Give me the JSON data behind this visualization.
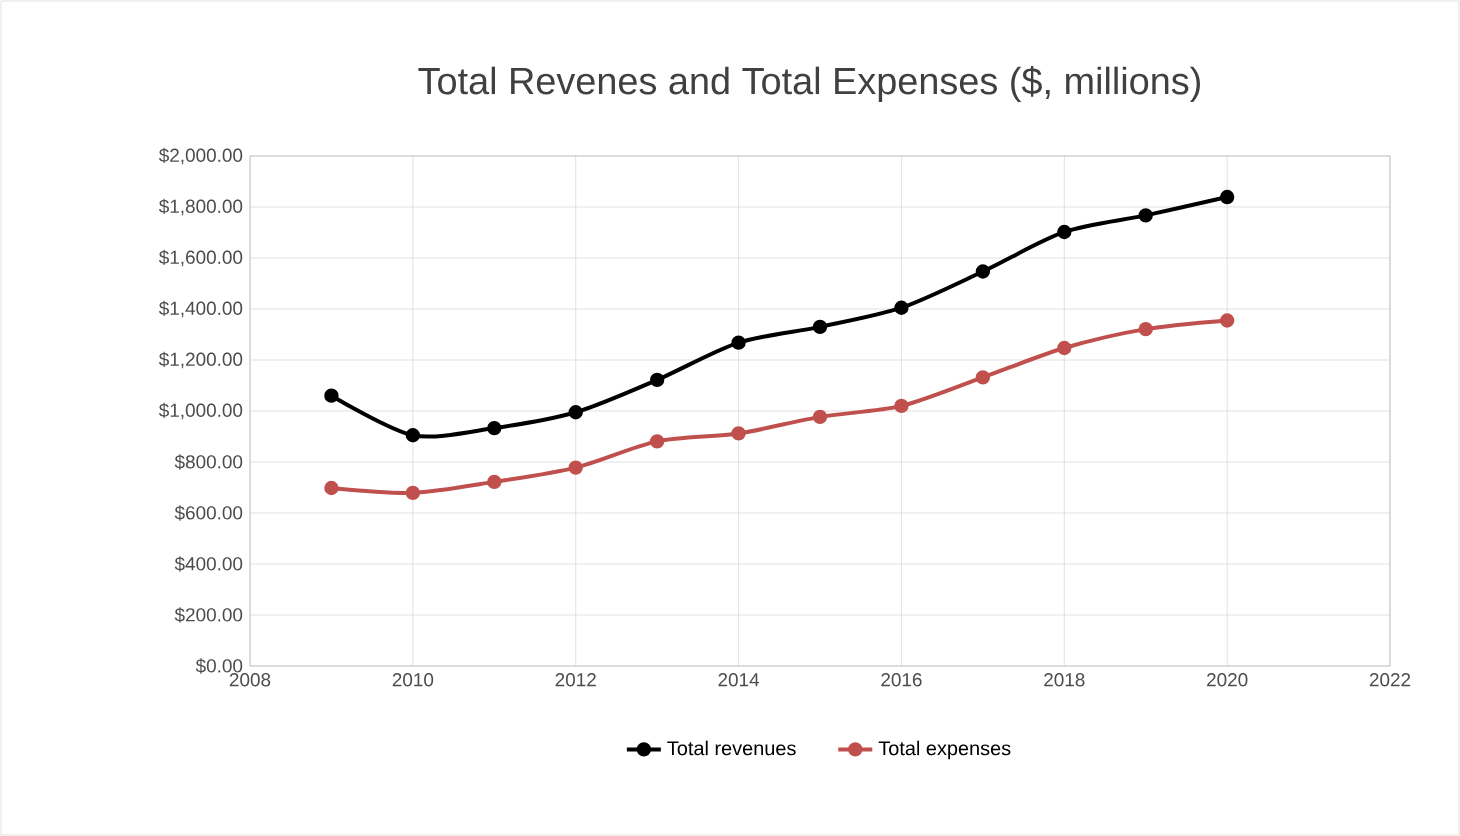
{
  "chart_data": {
    "type": "line",
    "title": "Total Revenes and Total Expenses ($, millions)",
    "x": [
      2009,
      2010,
      2011,
      2012,
      2013,
      2014,
      2015,
      2016,
      2017,
      2018,
      2019,
      2020
    ],
    "series": [
      {
        "name": "Total revenues",
        "color": "#000000",
        "values": [
          1060,
          905,
          933,
          995,
          1122,
          1268,
          1330,
          1405,
          1547,
          1702,
          1767,
          1839
        ]
      },
      {
        "name": "Total expenses",
        "color": "#c0504d",
        "values": [
          698,
          679,
          722,
          778,
          881,
          912,
          977,
          1020,
          1132,
          1247,
          1321,
          1355
        ]
      }
    ],
    "xlim": [
      2008,
      2022
    ],
    "xticks": [
      2008,
      2010,
      2012,
      2014,
      2016,
      2018,
      2020,
      2022
    ],
    "ylim": [
      0,
      2000
    ],
    "yticks": [
      {
        "value": 0,
        "label": "$0.00"
      },
      {
        "value": 200,
        "label": "$200.00"
      },
      {
        "value": 400,
        "label": "$400.00"
      },
      {
        "value": 600,
        "label": "$600.00"
      },
      {
        "value": 800,
        "label": "$800.00"
      },
      {
        "value": 1000,
        "label": "$1,000.00"
      },
      {
        "value": 1200,
        "label": "$1,200.00"
      },
      {
        "value": 1400,
        "label": "$1,400.00"
      },
      {
        "value": 1600,
        "label": "$1,600.00"
      },
      {
        "value": 1800,
        "label": "$1,800.00"
      },
      {
        "value": 2000,
        "label": "$2,000.00"
      }
    ],
    "grid": true,
    "legend": "bottom",
    "marker": "circle",
    "line_style": "solid"
  }
}
